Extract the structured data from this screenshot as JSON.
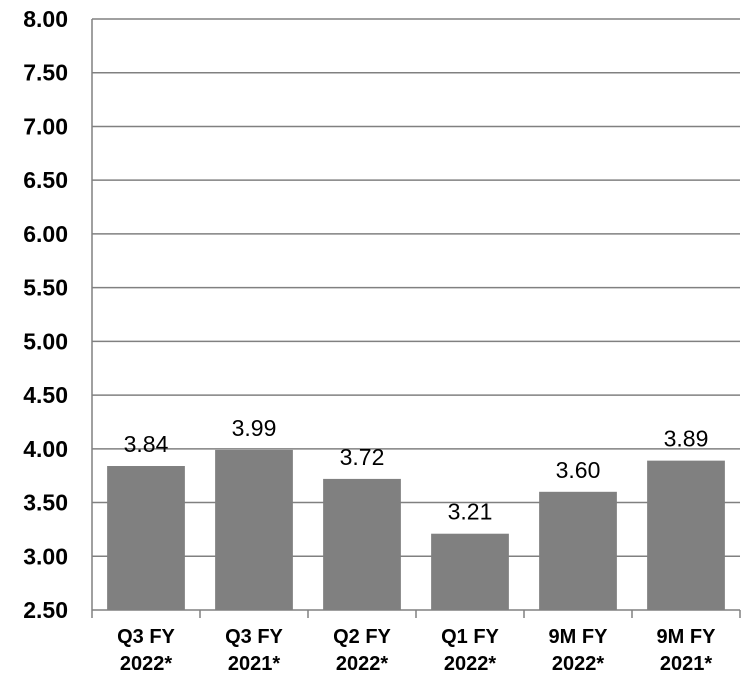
{
  "chart_data": {
    "type": "bar",
    "title": "",
    "xlabel": "",
    "ylabel": "",
    "categories": [
      [
        "Q3 FY",
        "2022*"
      ],
      [
        "Q3 FY",
        "2021*"
      ],
      [
        "Q2 FY",
        "2022*"
      ],
      [
        "Q1 FY",
        "2022*"
      ],
      [
        "9M FY",
        "2022*"
      ],
      [
        "9M FY",
        "2021*"
      ]
    ],
    "values": [
      3.84,
      3.99,
      3.72,
      3.21,
      3.6,
      3.89
    ],
    "data_labels": [
      "3.84",
      "3.99",
      "3.72",
      "3.21",
      "3.60",
      "3.89"
    ],
    "ylim": [
      2.5,
      8.0
    ],
    "yticks": [
      "2.50",
      "3.00",
      "3.50",
      "4.00",
      "4.50",
      "5.00",
      "5.50",
      "6.00",
      "6.50",
      "7.00",
      "7.50",
      "8.00"
    ],
    "grid": true,
    "legend": "none",
    "colors": {
      "bar": "#808080",
      "grid": "#808080",
      "axis": "#808080",
      "text": "#000000"
    }
  }
}
